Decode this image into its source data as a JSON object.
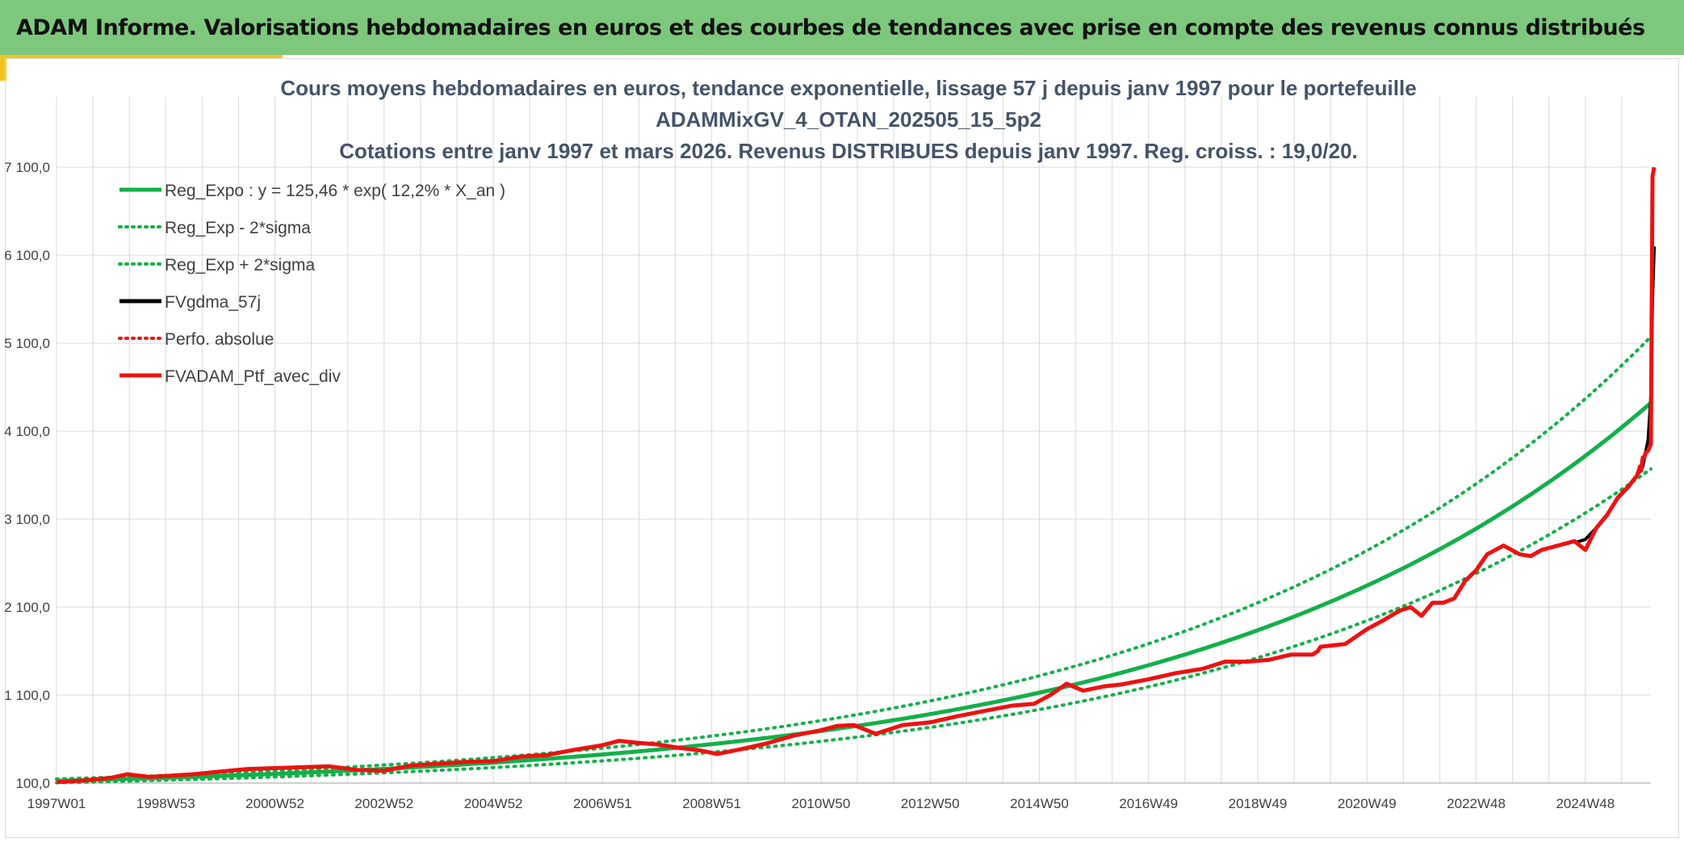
{
  "header": {
    "title": "ADAM Informe. Valorisations hebdomadaires en euros et des courbes de tendances avec prise en compte des revenus connus distribués"
  },
  "colors": {
    "header_bg": "#7dc87c",
    "accent": "#f4c21b",
    "reg": "#12b04a",
    "black": "#000000",
    "red": "#ee1111",
    "grid": "#d9d9d9"
  },
  "chart_data": {
    "type": "line",
    "title_lines": [
      "Cours moyens hebdomadaires en euros, tendance exponentielle, lissage 57 j depuis janv 1997 pour le portefeuille",
      "ADAMMixGV_4_OTAN_202505_15_5p2",
      "Cotations entre janv 1997 et mars 2026. Revenus DISTRIBUES depuis janv 1997. Reg. croiss. : 19,0/20."
    ],
    "x_tick_labels": [
      "1997W01",
      "1998W53",
      "2000W52",
      "2002W52",
      "2004W52",
      "2006W51",
      "2008W51",
      "2010W50",
      "2012W50",
      "2014W50",
      "2016W49",
      "2018W49",
      "2020W49",
      "2022W48",
      "2024W48"
    ],
    "x_tick_years": [
      1997.0,
      1999.0,
      2001.0,
      2003.0,
      2005.0,
      2007.0,
      2009.0,
      2011.0,
      2013.0,
      2015.0,
      2017.0,
      2019.0,
      2021.0,
      2023.0,
      2025.0
    ],
    "xlim": [
      1997.0,
      2026.2
    ],
    "y_ticks": [
      100,
      1100,
      2100,
      3100,
      4100,
      5100,
      6100,
      7100
    ],
    "y_tick_labels": [
      "100,0",
      "1 100,0",
      "2 100,0",
      "3 100,0",
      "4 100,0",
      "5 100,0",
      "6 100,0",
      "7 100,0"
    ],
    "ylim": [
      100,
      7900
    ],
    "regression": {
      "a": 125.46,
      "rate": 0.122,
      "sigma_factor": 0.17
    },
    "legend": [
      {
        "label": "Reg_Expo : y = 125,46 * exp( 12,2% *  X_an )",
        "color": "#12b04a",
        "style": "solid"
      },
      {
        "label": "Reg_Exp - 2*sigma",
        "color": "#12b04a",
        "style": "dotted"
      },
      {
        "label": "Reg_Exp + 2*sigma",
        "color": "#12b04a",
        "style": "dotted"
      },
      {
        "label": "FVgdma_57j",
        "color": "#000000",
        "style": "solid"
      },
      {
        "label": "Perfo. absolue",
        "color": "#ee1111",
        "style": "dotted"
      },
      {
        "label": "FVADAM_Ptf_avec_div",
        "color": "#ee1111",
        "style": "solid"
      }
    ],
    "series": [
      {
        "name": "FVADAM_Ptf_avec_div",
        "x": [
          1997.0,
          1997.5,
          1998.0,
          1998.3,
          1998.7,
          1999.0,
          1999.5,
          2000.0,
          2000.5,
          2001.0,
          2001.5,
          2002.0,
          2002.5,
          2003.0,
          2003.5,
          2004.0,
          2004.5,
          2005.0,
          2005.5,
          2006.0,
          2006.5,
          2007.0,
          2007.3,
          2007.6,
          2008.0,
          2008.4,
          2008.8,
          2009.1,
          2009.5,
          2010.0,
          2010.5,
          2011.0,
          2011.3,
          2011.6,
          2012.0,
          2012.5,
          2013.0,
          2013.5,
          2014.0,
          2014.5,
          2014.9,
          2015.2,
          2015.5,
          2015.8,
          2016.2,
          2016.5,
          2017.0,
          2017.5,
          2018.0,
          2018.4,
          2018.8,
          2019.2,
          2019.6,
          2020.0,
          2020.1,
          2020.15,
          2020.3,
          2020.6,
          2021.0,
          2021.3,
          2021.6,
          2021.8,
          2022.0,
          2022.2,
          2022.4,
          2022.6,
          2022.8,
          2023.0,
          2023.2,
          2023.5,
          2023.8,
          2024.0,
          2024.2,
          2024.5,
          2024.8,
          2025.0,
          2025.2,
          2025.4,
          2025.6,
          2025.8,
          2025.95,
          2026.0,
          2026.02,
          2026.05,
          2026.08,
          2026.1,
          2026.15,
          2026.2,
          2026.23,
          2026.26
        ],
        "y": [
          110,
          130,
          160,
          200,
          170,
          180,
          200,
          230,
          260,
          270,
          280,
          290,
          250,
          240,
          300,
          320,
          340,
          350,
          400,
          420,
          480,
          530,
          580,
          560,
          540,
          500,
          470,
          430,
          480,
          550,
          640,
          700,
          750,
          760,
          660,
          760,
          790,
          860,
          920,
          980,
          1000,
          1100,
          1230,
          1150,
          1200,
          1220,
          1280,
          1350,
          1400,
          1480,
          1480,
          1500,
          1560,
          1560,
          1600,
          1650,
          1660,
          1680,
          1850,
          1950,
          2060,
          2100,
          2000,
          2150,
          2150,
          2200,
          2400,
          2520,
          2700,
          2800,
          2700,
          2680,
          2750,
          2800,
          2850,
          2750,
          3000,
          3150,
          3350,
          3480,
          3600,
          3700,
          3650,
          3800,
          3800,
          3850,
          3880,
          3950,
          7000,
          7100
        ]
      },
      {
        "name": "FVgdma_57j",
        "x": [
          2024.8,
          2025.0,
          2025.2,
          2025.4,
          2025.6,
          2025.8,
          2025.95,
          2026.05,
          2026.1,
          2026.15,
          2026.2,
          2026.23,
          2026.26
        ],
        "y": [
          2830,
          2870,
          3000,
          3150,
          3340,
          3470,
          3600,
          3700,
          3850,
          4000,
          4500,
          5600,
          6200
        ]
      }
    ]
  }
}
